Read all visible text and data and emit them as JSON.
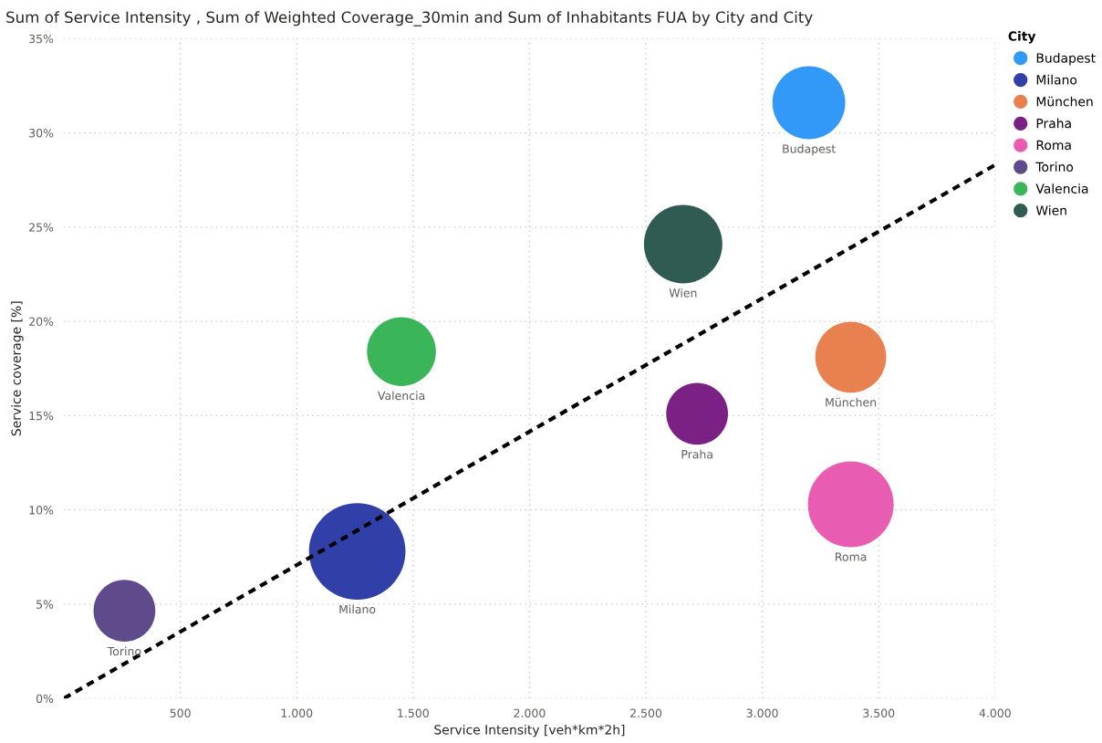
{
  "chart_data": {
    "type": "bubble",
    "title": "Sum of Service Intensity , Sum of Weighted Coverage_30min and Sum of Inhabitants FUA by City and City",
    "xlabel": "Service Intensity [veh*km*2h]",
    "ylabel": "Service coverage [%]",
    "legend_title": "City",
    "legend": "top right",
    "grid": true,
    "marker": "circle",
    "xlim": [
      0,
      4000
    ],
    "xticks": [
      {
        "value": 500,
        "label": "500"
      },
      {
        "value": 1000,
        "label": "1.000"
      },
      {
        "value": 1500,
        "label": "1.500"
      },
      {
        "value": 2000,
        "label": "2.000"
      },
      {
        "value": 2500,
        "label": "2.500"
      },
      {
        "value": 3000,
        "label": "3.000"
      },
      {
        "value": 3500,
        "label": "3.500"
      },
      {
        "value": 4000,
        "label": "4.000"
      }
    ],
    "ylim": [
      0,
      35
    ],
    "yticks": [
      {
        "value": 0,
        "label": "0%"
      },
      {
        "value": 5,
        "label": "5%"
      },
      {
        "value": 10,
        "label": "10%"
      },
      {
        "value": 15,
        "label": "15%"
      },
      {
        "value": 20,
        "label": "20%"
      },
      {
        "value": 25,
        "label": "25%"
      },
      {
        "value": 30,
        "label": "30%"
      },
      {
        "value": 35,
        "label": "35%"
      }
    ],
    "series": [
      {
        "name": "Budapest",
        "color": "#3399f8",
        "x": [
          3200
        ],
        "values": [
          31.6
        ],
        "sizes": [
          0.57
        ]
      },
      {
        "name": "Milano",
        "color": "#313fa8",
        "x": [
          1260
        ],
        "values": [
          7.8
        ],
        "sizes": [
          1
        ]
      },
      {
        "name": "München",
        "color": "#e8804f",
        "x": [
          3380
        ],
        "values": [
          18.1
        ],
        "sizes": [
          0.54
        ]
      },
      {
        "name": "Praha",
        "color": "#7b2084",
        "x": [
          2720
        ],
        "values": [
          15.1
        ],
        "sizes": [
          0.41
        ]
      },
      {
        "name": "Roma",
        "color": "#e85db2",
        "x": [
          3380
        ],
        "values": [
          10.3
        ],
        "sizes": [
          0.79
        ]
      },
      {
        "name": "Torino",
        "color": "#5f4a8b",
        "x": [
          260
        ],
        "values": [
          4.65
        ],
        "sizes": [
          0.41
        ]
      },
      {
        "name": "Valencia",
        "color": "#3bb55a",
        "x": [
          1450
        ],
        "values": [
          18.4
        ],
        "sizes": [
          0.51
        ]
      },
      {
        "name": "Wien",
        "color": "#2f5b53",
        "x": [
          2660
        ],
        "values": [
          24.1
        ],
        "sizes": [
          0.66
        ]
      },
      {
        "type": "line",
        "color": "#000000",
        "line_style": "dotted",
        "marker": "none",
        "x": [
          0,
          4000
        ],
        "values": [
          0,
          28.3
        ]
      }
    ]
  }
}
